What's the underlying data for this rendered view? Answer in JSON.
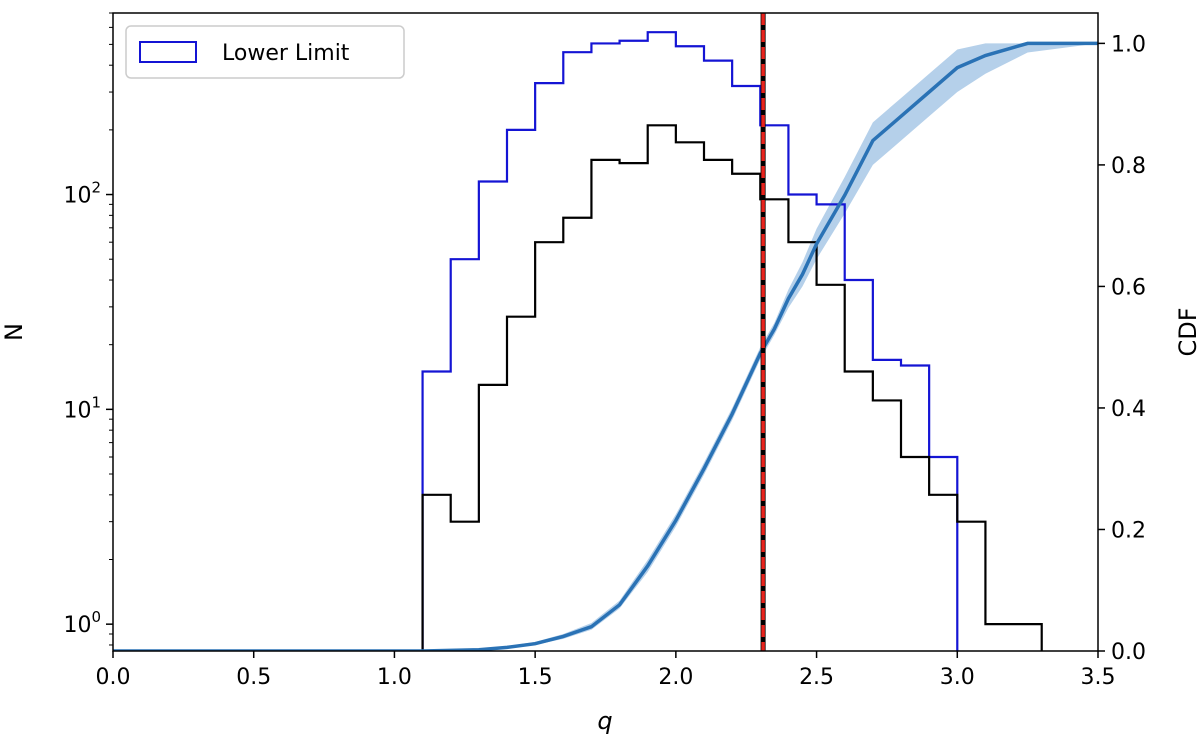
{
  "chart_data": {
    "type": "histogram",
    "xlabel": "q",
    "ylabel_left": "N",
    "ylabel_right": "CDF",
    "xlim": [
      0.0,
      3.5
    ],
    "ylim_left": [
      0.75,
      700
    ],
    "yscale_left": "log",
    "ylim_right": [
      0.0,
      1.05
    ],
    "x_ticks": [
      "0.0",
      "0.5",
      "1.0",
      "1.5",
      "2.0",
      "2.5",
      "3.0",
      "3.5"
    ],
    "y_left_ticks": [
      {
        "value": 1,
        "base": "10",
        "exp": "0"
      },
      {
        "value": 10,
        "base": "10",
        "exp": "1"
      },
      {
        "value": 100,
        "base": "10",
        "exp": "2"
      }
    ],
    "y_right_ticks": [
      "0.0",
      "0.2",
      "0.4",
      "0.6",
      "0.8",
      "1.0"
    ],
    "legend": {
      "location": "top-left",
      "label": "Lower Limit"
    },
    "bins": [
      1.1,
      1.2,
      1.3,
      1.4,
      1.5,
      1.6,
      1.7,
      1.8,
      1.9,
      2.0,
      2.1,
      2.2,
      2.3,
      2.4,
      2.5,
      2.6,
      2.7,
      2.8,
      2.9,
      3.0,
      3.1,
      3.2,
      3.3
    ],
    "series": [
      {
        "name": "Lower Limit",
        "style": "step",
        "color": "#1414d4",
        "counts": [
          15,
          50,
          115,
          200,
          330,
          460,
          505,
          520,
          570,
          490,
          420,
          320,
          210,
          100,
          90,
          40,
          17,
          16,
          6,
          0,
          0,
          0
        ]
      },
      {
        "style": "step",
        "color": "#000000",
        "counts": [
          4,
          3,
          13,
          27,
          60,
          78,
          145,
          140,
          210,
          175,
          145,
          125,
          95,
          60,
          38,
          15,
          11,
          6,
          4,
          3,
          1,
          1
        ]
      }
    ],
    "cdf": {
      "color": "#2a72b5",
      "band_color": "#b5d0ea",
      "points": [
        [
          0.0,
          0.0
        ],
        [
          1.1,
          0.0
        ],
        [
          1.3,
          0.002
        ],
        [
          1.4,
          0.006
        ],
        [
          1.5,
          0.012
        ],
        [
          1.6,
          0.024
        ],
        [
          1.7,
          0.04
        ],
        [
          1.8,
          0.076
        ],
        [
          1.9,
          0.14
        ],
        [
          2.0,
          0.215
        ],
        [
          2.1,
          0.3
        ],
        [
          2.2,
          0.39
        ],
        [
          2.25,
          0.44
        ],
        [
          2.3,
          0.49
        ],
        [
          2.35,
          0.53
        ],
        [
          2.4,
          0.58
        ],
        [
          2.45,
          0.62
        ],
        [
          2.5,
          0.67
        ],
        [
          2.6,
          0.75
        ],
        [
          2.7,
          0.84
        ],
        [
          2.8,
          0.88
        ],
        [
          2.9,
          0.92
        ],
        [
          3.0,
          0.96
        ],
        [
          3.1,
          0.98
        ],
        [
          3.25,
          1.0
        ],
        [
          3.5,
          1.0
        ]
      ],
      "band_low": [
        [
          0.0,
          0.0
        ],
        [
          1.1,
          0.0
        ],
        [
          1.3,
          0.001
        ],
        [
          1.4,
          0.004
        ],
        [
          1.5,
          0.01
        ],
        [
          1.6,
          0.02
        ],
        [
          1.7,
          0.035
        ],
        [
          1.8,
          0.07
        ],
        [
          1.9,
          0.13
        ],
        [
          2.0,
          0.205
        ],
        [
          2.1,
          0.29
        ],
        [
          2.2,
          0.38
        ],
        [
          2.25,
          0.43
        ],
        [
          2.3,
          0.48
        ],
        [
          2.35,
          0.52
        ],
        [
          2.4,
          0.565
        ],
        [
          2.45,
          0.6
        ],
        [
          2.5,
          0.645
        ],
        [
          2.6,
          0.72
        ],
        [
          2.7,
          0.8
        ],
        [
          2.8,
          0.84
        ],
        [
          2.9,
          0.88
        ],
        [
          3.0,
          0.92
        ],
        [
          3.1,
          0.95
        ],
        [
          3.25,
          0.985
        ],
        [
          3.5,
          1.0
        ]
      ],
      "band_high": [
        [
          0.0,
          0.0
        ],
        [
          1.1,
          0.0
        ],
        [
          1.3,
          0.003
        ],
        [
          1.4,
          0.008
        ],
        [
          1.5,
          0.015
        ],
        [
          1.6,
          0.028
        ],
        [
          1.7,
          0.046
        ],
        [
          1.8,
          0.083
        ],
        [
          1.9,
          0.15
        ],
        [
          2.0,
          0.225
        ],
        [
          2.1,
          0.31
        ],
        [
          2.2,
          0.4
        ],
        [
          2.25,
          0.45
        ],
        [
          2.3,
          0.5
        ],
        [
          2.35,
          0.54
        ],
        [
          2.4,
          0.595
        ],
        [
          2.45,
          0.64
        ],
        [
          2.5,
          0.695
        ],
        [
          2.6,
          0.78
        ],
        [
          2.7,
          0.87
        ],
        [
          2.8,
          0.91
        ],
        [
          2.9,
          0.95
        ],
        [
          3.0,
          0.99
        ],
        [
          3.1,
          1.0
        ],
        [
          3.25,
          1.0
        ],
        [
          3.5,
          1.0
        ]
      ]
    },
    "vlines": [
      {
        "x": 2.31,
        "color": "#000000",
        "style": "solid"
      },
      {
        "x": 2.31,
        "color": "#e8231d",
        "style": "dashed"
      }
    ]
  }
}
